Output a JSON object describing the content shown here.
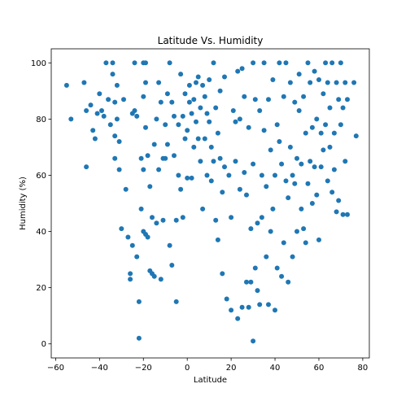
{
  "chart_data": {
    "type": "scatter",
    "title": "Latitude Vs. Humidity",
    "xlabel": "Latitude",
    "ylabel": "Humidity (%)",
    "xlim": [
      -62,
      83
    ],
    "ylim": [
      -5,
      105
    ],
    "xticks": [
      -60,
      -40,
      -20,
      0,
      20,
      40,
      60,
      80
    ],
    "yticks": [
      0,
      20,
      40,
      60,
      80,
      100
    ],
    "grid": false,
    "series": [
      {
        "color": "#1f77b4",
        "points": [
          [
            -55,
            92
          ],
          [
            -53,
            80
          ],
          [
            -47,
            93
          ],
          [
            -46,
            83
          ],
          [
            -46,
            63
          ],
          [
            -44,
            85
          ],
          [
            -43,
            76
          ],
          [
            -42,
            73
          ],
          [
            -41,
            82
          ],
          [
            -40,
            89
          ],
          [
            -39,
            83
          ],
          [
            -38,
            81
          ],
          [
            -37,
            100
          ],
          [
            -36,
            87
          ],
          [
            -35,
            78
          ],
          [
            -34,
            100
          ],
          [
            -34,
            96
          ],
          [
            -33,
            86
          ],
          [
            -33,
            74
          ],
          [
            -33,
            66
          ],
          [
            -32,
            92
          ],
          [
            -32,
            80
          ],
          [
            -31,
            72
          ],
          [
            -31,
            62
          ],
          [
            -30,
            41
          ],
          [
            -29,
            87
          ],
          [
            -28,
            55
          ],
          [
            -27,
            38
          ],
          [
            -26,
            25
          ],
          [
            -26,
            23
          ],
          [
            -25,
            82
          ],
          [
            -25,
            35
          ],
          [
            -24,
            100
          ],
          [
            -24,
            83
          ],
          [
            -23,
            81
          ],
          [
            -23,
            31
          ],
          [
            -22,
            15
          ],
          [
            -22,
            2
          ],
          [
            -21,
            66
          ],
          [
            -21,
            48
          ],
          [
            -20,
            100
          ],
          [
            -20,
            88
          ],
          [
            -20,
            62
          ],
          [
            -20,
            40
          ],
          [
            -19,
            100
          ],
          [
            -19,
            93
          ],
          [
            -19,
            77
          ],
          [
            -19,
            39
          ],
          [
            -18,
            67
          ],
          [
            -18,
            38
          ],
          [
            -17,
            56
          ],
          [
            -17,
            26
          ],
          [
            -16,
            25
          ],
          [
            -16,
            45
          ],
          [
            -15,
            71
          ],
          [
            -15,
            24
          ],
          [
            -14,
            80
          ],
          [
            -14,
            43
          ],
          [
            -13,
            93
          ],
          [
            -13,
            62
          ],
          [
            -12,
            86
          ],
          [
            -12,
            23
          ],
          [
            -11,
            66
          ],
          [
            -11,
            44
          ],
          [
            -10,
            78
          ],
          [
            -10,
            66
          ],
          [
            -9,
            89
          ],
          [
            -9,
            71
          ],
          [
            -8,
            100
          ],
          [
            -8,
            35
          ],
          [
            -7,
            86
          ],
          [
            -7,
            28
          ],
          [
            -6,
            81
          ],
          [
            -6,
            67
          ],
          [
            -5,
            44
          ],
          [
            -5,
            15
          ],
          [
            -4,
            78
          ],
          [
            -4,
            60
          ],
          [
            -3,
            96
          ],
          [
            -3,
            55
          ],
          [
            -2,
            81
          ],
          [
            -2,
            45
          ],
          [
            -1,
            89
          ],
          [
            -1,
            73
          ],
          [
            0,
            76
          ],
          [
            0,
            59
          ],
          [
            1,
            92
          ],
          [
            1,
            86
          ],
          [
            2,
            82
          ],
          [
            2,
            59
          ],
          [
            3,
            87
          ],
          [
            3,
            70
          ],
          [
            4,
            93
          ],
          [
            4,
            79
          ],
          [
            5,
            95
          ],
          [
            5,
            73
          ],
          [
            6,
            84
          ],
          [
            6,
            65
          ],
          [
            7,
            92
          ],
          [
            7,
            48
          ],
          [
            8,
            88
          ],
          [
            8,
            73
          ],
          [
            9,
            82
          ],
          [
            9,
            60
          ],
          [
            10,
            94
          ],
          [
            10,
            79
          ],
          [
            11,
            70
          ],
          [
            11,
            58
          ],
          [
            12,
            100
          ],
          [
            12,
            65
          ],
          [
            13,
            84
          ],
          [
            13,
            44
          ],
          [
            14,
            75
          ],
          [
            14,
            37
          ],
          [
            15,
            90
          ],
          [
            15,
            66
          ],
          [
            16,
            54
          ],
          [
            16,
            25
          ],
          [
            17,
            95
          ],
          [
            17,
            63
          ],
          [
            18,
            16
          ],
          [
            19,
            60
          ],
          [
            20,
            12
          ],
          [
            20,
            45
          ],
          [
            21,
            83
          ],
          [
            22,
            79
          ],
          [
            22,
            65
          ],
          [
            23,
            97
          ],
          [
            23,
            9
          ],
          [
            24,
            80
          ],
          [
            24,
            55
          ],
          [
            25,
            98
          ],
          [
            25,
            13
          ],
          [
            26,
            88
          ],
          [
            26,
            61
          ],
          [
            27,
            53
          ],
          [
            27,
            22
          ],
          [
            28,
            13
          ],
          [
            28,
            77
          ],
          [
            29,
            41
          ],
          [
            29,
            22
          ],
          [
            30,
            100
          ],
          [
            30,
            64
          ],
          [
            30,
            1
          ],
          [
            31,
            87
          ],
          [
            31,
            27
          ],
          [
            32,
            43
          ],
          [
            32,
            19
          ],
          [
            33,
            83
          ],
          [
            33,
            14
          ],
          [
            34,
            60
          ],
          [
            34,
            45
          ],
          [
            35,
            100
          ],
          [
            35,
            76
          ],
          [
            36,
            56
          ],
          [
            36,
            31
          ],
          [
            37,
            87
          ],
          [
            37,
            14
          ],
          [
            38,
            69
          ],
          [
            38,
            40
          ],
          [
            39,
            94
          ],
          [
            39,
            48
          ],
          [
            40,
            60
          ],
          [
            40,
            12
          ],
          [
            41,
            78
          ],
          [
            41,
            27
          ],
          [
            42,
            100
          ],
          [
            42,
            72
          ],
          [
            43,
            64
          ],
          [
            43,
            24
          ],
          [
            44,
            88
          ],
          [
            44,
            36
          ],
          [
            45,
            100
          ],
          [
            45,
            58
          ],
          [
            46,
            52
          ],
          [
            46,
            22
          ],
          [
            47,
            93
          ],
          [
            47,
            70
          ],
          [
            48,
            31
          ],
          [
            48,
            60
          ],
          [
            49,
            86
          ],
          [
            49,
            57
          ],
          [
            50,
            66
          ],
          [
            50,
            40
          ],
          [
            51,
            96
          ],
          [
            51,
            83
          ],
          [
            52,
            48
          ],
          [
            52,
            64
          ],
          [
            53,
            88
          ],
          [
            53,
            41
          ],
          [
            54,
            75
          ],
          [
            54,
            36
          ],
          [
            55,
            100
          ],
          [
            55,
            57
          ],
          [
            56,
            93
          ],
          [
            56,
            65
          ],
          [
            57,
            77
          ],
          [
            57,
            50
          ],
          [
            58,
            97
          ],
          [
            58,
            63
          ],
          [
            59,
            80
          ],
          [
            59,
            53
          ],
          [
            60,
            94
          ],
          [
            60,
            37
          ],
          [
            61,
            75
          ],
          [
            61,
            63
          ],
          [
            62,
            89
          ],
          [
            62,
            69
          ],
          [
            63,
            100
          ],
          [
            63,
            78
          ],
          [
            64,
            93
          ],
          [
            64,
            58
          ],
          [
            65,
            84
          ],
          [
            65,
            70
          ],
          [
            66,
            100
          ],
          [
            66,
            54
          ],
          [
            67,
            75
          ],
          [
            67,
            62
          ],
          [
            68,
            93
          ],
          [
            68,
            47
          ],
          [
            69,
            87
          ],
          [
            69,
            51
          ],
          [
            70,
            100
          ],
          [
            70,
            78
          ],
          [
            71,
            84
          ],
          [
            71,
            46
          ],
          [
            72,
            93
          ],
          [
            72,
            65
          ],
          [
            73,
            87
          ],
          [
            73,
            46
          ],
          [
            76,
            93
          ],
          [
            77,
            74
          ]
        ]
      }
    ]
  }
}
